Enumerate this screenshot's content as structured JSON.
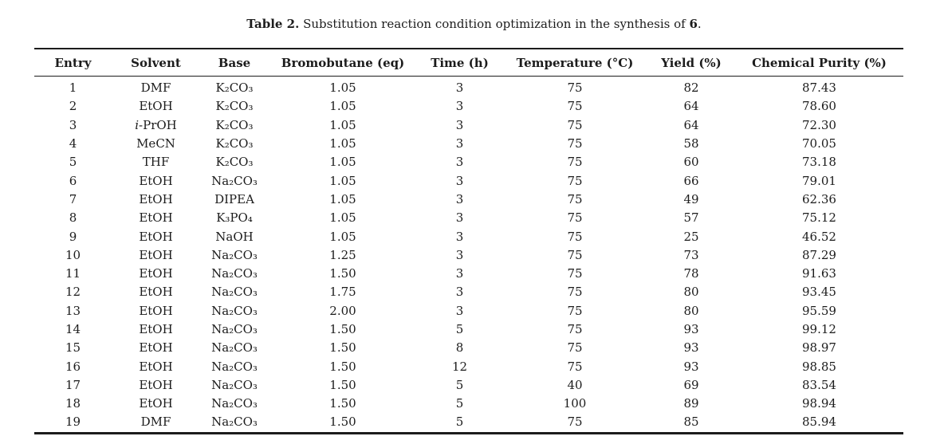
{
  "caption": {
    "label": "Table 2.",
    "text": " Substitution reaction condition optimization in the synthesis of ",
    "compound": "6",
    "suffix": "."
  },
  "table": {
    "headers": [
      "Entry",
      "Solvent",
      "Base",
      "Bromobutane (eq)",
      "Time (h)",
      "Temperature (°C)",
      "Yield (%)",
      "Chemical Purity (%)"
    ],
    "rows": [
      [
        "1",
        "DMF",
        "K₂CO₃",
        "1.05",
        "3",
        "75",
        "82",
        "87.43"
      ],
      [
        "2",
        "EtOH",
        "K₂CO₃",
        "1.05",
        "3",
        "75",
        "64",
        "78.60"
      ],
      [
        "3",
        "i-PrOH",
        "K₂CO₃",
        "1.05",
        "3",
        "75",
        "64",
        "72.30"
      ],
      [
        "4",
        "MeCN",
        "K₂CO₃",
        "1.05",
        "3",
        "75",
        "58",
        "70.05"
      ],
      [
        "5",
        "THF",
        "K₂CO₃",
        "1.05",
        "3",
        "75",
        "60",
        "73.18"
      ],
      [
        "6",
        "EtOH",
        "Na₂CO₃",
        "1.05",
        "3",
        "75",
        "66",
        "79.01"
      ],
      [
        "7",
        "EtOH",
        "DIPEA",
        "1.05",
        "3",
        "75",
        "49",
        "62.36"
      ],
      [
        "8",
        "EtOH",
        "K₃PO₄",
        "1.05",
        "3",
        "75",
        "57",
        "75.12"
      ],
      [
        "9",
        "EtOH",
        "NaOH",
        "1.05",
        "3",
        "75",
        "25",
        "46.52"
      ],
      [
        "10",
        "EtOH",
        "Na₂CO₃",
        "1.25",
        "3",
        "75",
        "73",
        "87.29"
      ],
      [
        "11",
        "EtOH",
        "Na₂CO₃",
        "1.50",
        "3",
        "75",
        "78",
        "91.63"
      ],
      [
        "12",
        "EtOH",
        "Na₂CO₃",
        "1.75",
        "3",
        "75",
        "80",
        "93.45"
      ],
      [
        "13",
        "EtOH",
        "Na₂CO₃",
        "2.00",
        "3",
        "75",
        "80",
        "95.59"
      ],
      [
        "14",
        "EtOH",
        "Na₂CO₃",
        "1.50",
        "5",
        "75",
        "93",
        "99.12"
      ],
      [
        "15",
        "EtOH",
        "Na₂CO₃",
        "1.50",
        "8",
        "75",
        "93",
        "98.97"
      ],
      [
        "16",
        "EtOH",
        "Na₂CO₃",
        "1.50",
        "12",
        "75",
        "93",
        "98.85"
      ],
      [
        "17",
        "EtOH",
        "Na₂CO₃",
        "1.50",
        "5",
        "40",
        "69",
        "83.54"
      ],
      [
        "18",
        "EtOH",
        "Na₂CO₃",
        "1.50",
        "5",
        "100",
        "89",
        "98.94"
      ],
      [
        "19",
        "DMF",
        "Na₂CO₃",
        "1.50",
        "5",
        "75",
        "85",
        "85.94"
      ]
    ]
  }
}
